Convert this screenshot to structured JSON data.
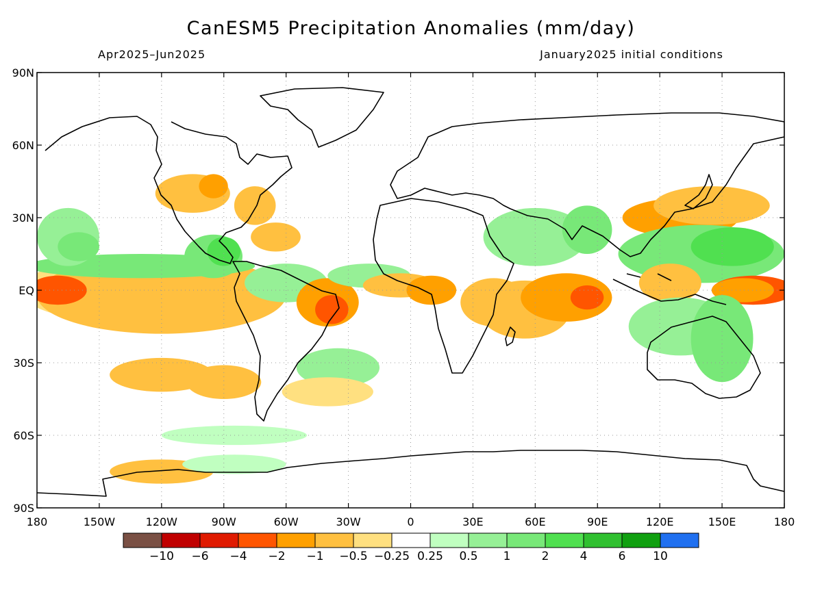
{
  "title": "CanESM5 Precipitation Anomalies (mm/day)",
  "period": "Apr2025–Jun2025",
  "init": "January2025 initial conditions",
  "lat_ticks": [
    {
      "label": "90N",
      "lat": 90
    },
    {
      "label": "60N",
      "lat": 60
    },
    {
      "label": "30N",
      "lat": 30
    },
    {
      "label": "EQ",
      "lat": 0
    },
    {
      "label": "30S",
      "lat": -30
    },
    {
      "label": "60S",
      "lat": -60
    },
    {
      "label": "90S",
      "lat": -90
    }
  ],
  "lon_ticks": [
    {
      "label": "180",
      "lon": -180
    },
    {
      "label": "150W",
      "lon": -150
    },
    {
      "label": "120W",
      "lon": -120
    },
    {
      "label": "90W",
      "lon": -90
    },
    {
      "label": "60W",
      "lon": -60
    },
    {
      "label": "30W",
      "lon": -30
    },
    {
      "label": "0",
      "lon": 0
    },
    {
      "label": "30E",
      "lon": 30
    },
    {
      "label": "60E",
      "lon": 60
    },
    {
      "label": "90E",
      "lon": 90
    },
    {
      "label": "120E",
      "lon": 120
    },
    {
      "label": "150E",
      "lon": 150
    },
    {
      "label": "180",
      "lon": 180
    }
  ],
  "colorbar": {
    "colors": [
      "#7a5044",
      "#c00000",
      "#e01a00",
      "#ff5500",
      "#ffa000",
      "#ffc040",
      "#ffe080",
      "#ffffff",
      "#c0ffc0",
      "#96f096",
      "#78e878",
      "#50e050",
      "#30c030",
      "#10a010",
      "#2070f0"
    ],
    "labels": [
      "−10",
      "−6",
      "−4",
      "−2",
      "−1",
      "−0.5",
      "−0.25",
      "0.25",
      "0.5",
      "1",
      "2",
      "4",
      "6",
      "10"
    ]
  },
  "anomalies": [
    {
      "lon": -165,
      "lat": 3,
      "rx": 15,
      "ry": 5,
      "level": 3
    },
    {
      "lon": -150,
      "lat": 2,
      "rx": 30,
      "ry": 9,
      "level": 4
    },
    {
      "lon": -140,
      "lat": 0,
      "rx": 48,
      "ry": 13,
      "level": 6
    },
    {
      "lon": -120,
      "lat": -2,
      "rx": 60,
      "ry": 16,
      "level": 5
    },
    {
      "lon": -170,
      "lat": 0,
      "rx": 14,
      "ry": 6,
      "level": 3
    },
    {
      "lon": -130,
      "lat": 10,
      "rx": 55,
      "ry": 5,
      "level": 10
    },
    {
      "lon": -165,
      "lat": 22,
      "rx": 15,
      "ry": 12,
      "level": 9
    },
    {
      "lon": -160,
      "lat": 18,
      "rx": 10,
      "ry": 6,
      "level": 10
    },
    {
      "lon": -95,
      "lat": 14,
      "rx": 14,
      "ry": 9,
      "level": 10
    },
    {
      "lon": -90,
      "lat": 16,
      "rx": 8,
      "ry": 6,
      "level": 11
    },
    {
      "lon": -105,
      "lat": 40,
      "rx": 18,
      "ry": 8,
      "level": 5
    },
    {
      "lon": -95,
      "lat": 43,
      "rx": 7,
      "ry": 5,
      "level": 4
    },
    {
      "lon": -75,
      "lat": 35,
      "rx": 10,
      "ry": 8,
      "level": 5
    },
    {
      "lon": -65,
      "lat": 22,
      "rx": 12,
      "ry": 6,
      "level": 5
    },
    {
      "lon": -60,
      "lat": 3,
      "rx": 20,
      "ry": 8,
      "level": 9
    },
    {
      "lon": -40,
      "lat": -5,
      "rx": 15,
      "ry": 10,
      "level": 4
    },
    {
      "lon": -38,
      "lat": -8,
      "rx": 8,
      "ry": 6,
      "level": 3
    },
    {
      "lon": -20,
      "lat": 6,
      "rx": 20,
      "ry": 5,
      "level": 9
    },
    {
      "lon": -5,
      "lat": 2,
      "rx": 18,
      "ry": 5,
      "level": 5
    },
    {
      "lon": 10,
      "lat": 0,
      "rx": 12,
      "ry": 6,
      "level": 4
    },
    {
      "lon": 40,
      "lat": -5,
      "rx": 16,
      "ry": 10,
      "level": 5
    },
    {
      "lon": 55,
      "lat": -8,
      "rx": 22,
      "ry": 12,
      "level": 5
    },
    {
      "lon": 75,
      "lat": -3,
      "rx": 22,
      "ry": 10,
      "level": 4
    },
    {
      "lon": 85,
      "lat": -3,
      "rx": 8,
      "ry": 5,
      "level": 3
    },
    {
      "lon": 60,
      "lat": 22,
      "rx": 25,
      "ry": 12,
      "level": 9
    },
    {
      "lon": 85,
      "lat": 25,
      "rx": 12,
      "ry": 10,
      "level": 10
    },
    {
      "lon": 130,
      "lat": 30,
      "rx": 28,
      "ry": 8,
      "level": 4
    },
    {
      "lon": 145,
      "lat": 35,
      "rx": 28,
      "ry": 8,
      "level": 5
    },
    {
      "lon": 140,
      "lat": 15,
      "rx": 40,
      "ry": 12,
      "level": 10
    },
    {
      "lon": 155,
      "lat": 18,
      "rx": 20,
      "ry": 8,
      "level": 11
    },
    {
      "lon": 165,
      "lat": 0,
      "rx": 20,
      "ry": 6,
      "level": 3
    },
    {
      "lon": 160,
      "lat": 0,
      "rx": 15,
      "ry": 5,
      "level": 4
    },
    {
      "lon": 125,
      "lat": 3,
      "rx": 15,
      "ry": 8,
      "level": 5
    },
    {
      "lon": 130,
      "lat": -15,
      "rx": 25,
      "ry": 12,
      "level": 9
    },
    {
      "lon": 150,
      "lat": -20,
      "rx": 15,
      "ry": 18,
      "level": 10
    },
    {
      "lon": -120,
      "lat": -35,
      "rx": 25,
      "ry": 7,
      "level": 5
    },
    {
      "lon": -90,
      "lat": -38,
      "rx": 18,
      "ry": 7,
      "level": 5
    },
    {
      "lon": -35,
      "lat": -32,
      "rx": 20,
      "ry": 8,
      "level": 9
    },
    {
      "lon": -40,
      "lat": -42,
      "rx": 22,
      "ry": 6,
      "level": 6
    },
    {
      "lon": -120,
      "lat": -75,
      "rx": 25,
      "ry": 5,
      "level": 5
    },
    {
      "lon": -85,
      "lat": -60,
      "rx": 35,
      "ry": 4,
      "level": 8
    },
    {
      "lon": -85,
      "lat": -72,
      "rx": 25,
      "ry": 4,
      "level": 8
    }
  ]
}
